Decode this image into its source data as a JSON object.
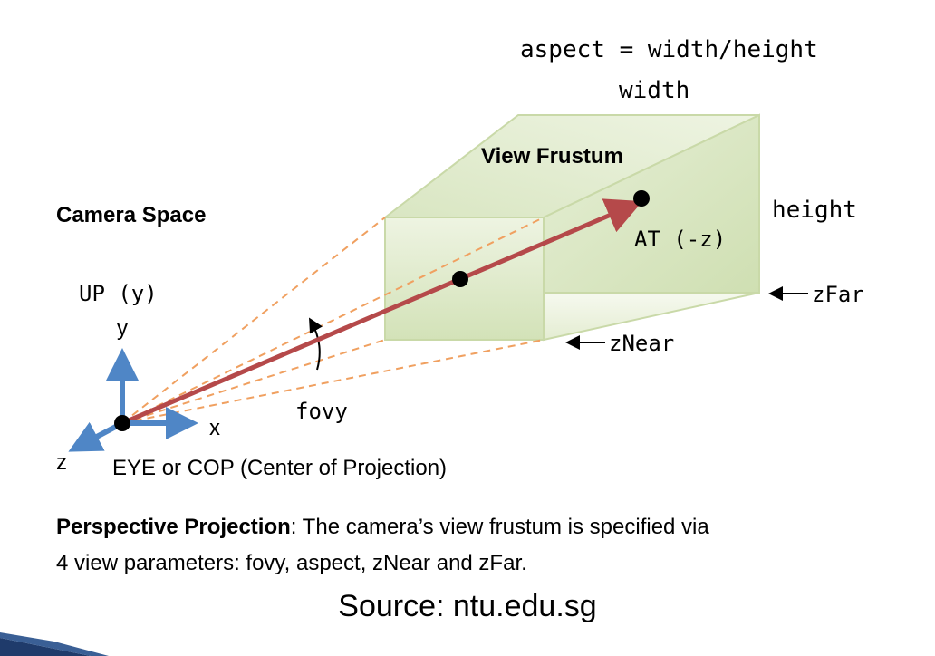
{
  "diagram": {
    "aspect_formula": "aspect = width/height",
    "width_label": "width",
    "height_label": "height",
    "frustum_title": "View Frustum",
    "camera_space_title": "Camera Space",
    "at_label": "AT (-z)",
    "zfar_label": "zFar",
    "znear_label": "zNear",
    "up_label": "UP (y)",
    "y_axis_label": "y",
    "x_axis_label": "x",
    "z_axis_label": "z",
    "fovy_label": "fovy",
    "eye_label": "EYE or COP (Center of Projection)"
  },
  "caption": {
    "bold": "Perspective Projection",
    "line1_rest": ": The camera’s view frustum is specified via",
    "line2": "4 view parameters: fovy, aspect, zNear and zFar."
  },
  "source": "Source: ntu.edu.sg",
  "colors": {
    "frustum_fill": "#dfe9cc",
    "frustum_stroke": "#c9d9a8",
    "dashed_lines": "#f0a060",
    "view_arrow": "#b5494a",
    "axes": "#4f86c6",
    "corner_bar": "#1f3b6b"
  }
}
